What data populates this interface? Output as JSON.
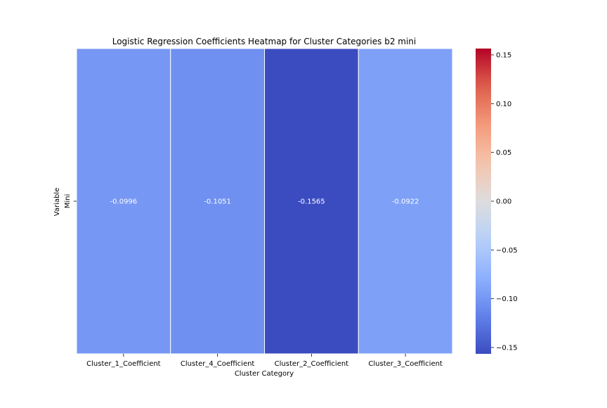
{
  "chart_data": {
    "type": "heatmap",
    "title": "Logistic Regression Coefficients Heatmap for Cluster Categories b2 mini",
    "xlabel": "Cluster Category",
    "ylabel": "Variable",
    "x_categories": [
      "Cluster_1_Coefficient",
      "Cluster_4_Coefficient",
      "Cluster_2_Coefficient",
      "Cluster_3_Coefficient"
    ],
    "y_categories": [
      "Mini"
    ],
    "values": [
      [
        -0.0996,
        -0.1051,
        -0.1565,
        -0.0922
      ]
    ],
    "annotations": [
      [
        "-0.0996",
        "-0.1051",
        "-0.1565",
        "-0.0922"
      ]
    ],
    "colormap": "coolwarm",
    "colorbar": {
      "vmin": -0.1565,
      "vmax": 0.1565,
      "ticks": [
        0.15,
        0.1,
        0.05,
        0.0,
        -0.05,
        -0.1,
        -0.15
      ],
      "tick_labels": [
        "0.15",
        "0.10",
        "0.05",
        "0.00",
        "−0.05",
        "−0.10",
        "−0.15"
      ]
    },
    "cell_border_color": "#ffffff",
    "grid": false,
    "legend": "colorbar-right"
  }
}
